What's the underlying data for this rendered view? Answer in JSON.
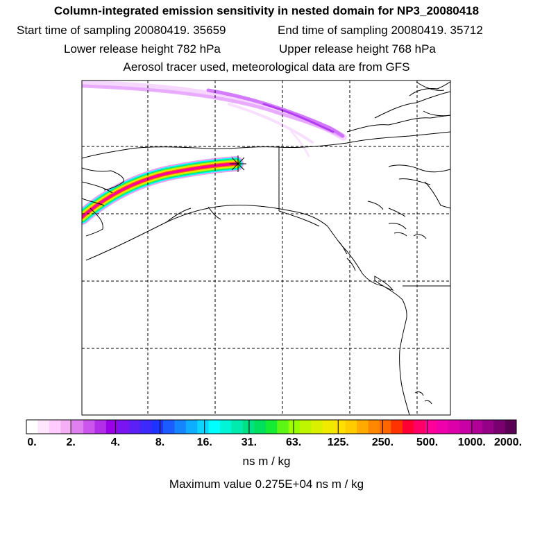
{
  "header": {
    "title": "Column-integrated emission sensitivity in nested domain for NP3_20080418",
    "start_label": "Start time of sampling 20080419. 35659",
    "end_label": "End time of sampling 20080419. 35712",
    "lower_label": "Lower release height  782 hPa",
    "upper_label": "Upper release height  768 hPa",
    "tracer_label": "Aerosol tracer used, meteorological data are from GFS"
  },
  "colorbar": {
    "tick_labels": [
      "0.",
      "2.",
      "4.",
      "8.",
      "16.",
      "31.",
      "63.",
      "125.",
      "250.",
      "500.",
      "1000.",
      "2000."
    ],
    "colors": [
      "#ffffff",
      "#ffe6ff",
      "#ffccff",
      "#f5b0f5",
      "#e080f0",
      "#cc55ee",
      "#b32ee8",
      "#9900e6",
      "#7a14f0",
      "#5c1ff5",
      "#3d29fa",
      "#1f33ff",
      "#1a5cff",
      "#1485ff",
      "#0fadff",
      "#0ad6ff",
      "#00ffff",
      "#00f5d6",
      "#00ebad",
      "#00e085",
      "#00e05c",
      "#14eb33",
      "#5cf514",
      "#99ff00",
      "#bff500",
      "#d9f000",
      "#f0ea00",
      "#ffe000",
      "#ffcc00",
      "#ffaa00",
      "#ff8800",
      "#ff6600",
      "#ff3300",
      "#ff0033",
      "#ff0066",
      "#ff0099",
      "#f000aa",
      "#dd00aa",
      "#c800a5",
      "#b00098",
      "#960088",
      "#7a0070",
      "#5c0055"
    ],
    "units": "ns m / kg"
  },
  "max_value_text": "Maximum value  0.275E+04 ns m / kg",
  "map": {
    "plume_colors": [
      "#cc66ff",
      "#ff0099",
      "#ffff00",
      "#00e0a0",
      "#00ffff"
    ]
  }
}
